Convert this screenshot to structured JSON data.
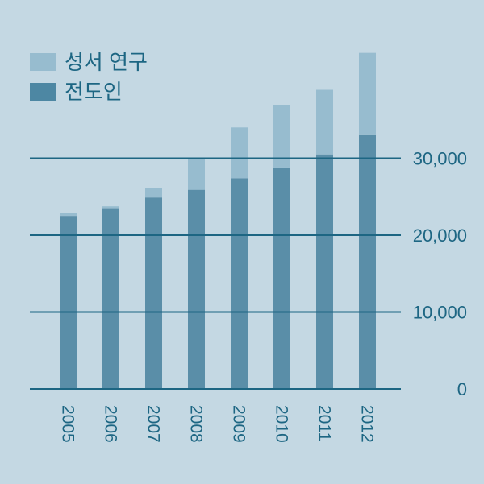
{
  "chart_data": {
    "type": "bar",
    "stacked": true,
    "categories": [
      "2005",
      "2006",
      "2007",
      "2008",
      "2009",
      "2010",
      "2011",
      "2012"
    ],
    "series": [
      {
        "name": "전도인",
        "color": "#5a8ea8",
        "values": [
          22500,
          23500,
          24900,
          25900,
          27400,
          28800,
          30500,
          33000
        ]
      },
      {
        "name": "성서 연구",
        "color": "#97bccf",
        "values": [
          350,
          250,
          1200,
          4100,
          6600,
          8100,
          8400,
          10700
        ]
      }
    ],
    "y_ticks": [
      0,
      10000,
      20000,
      30000
    ],
    "y_tick_labels": [
      "0",
      "10,000",
      "20,000",
      "30,000"
    ],
    "ylim": [
      0,
      46000
    ],
    "y_axis_side": "right",
    "grid": true,
    "legend": "top-left",
    "title": "",
    "xlabel": "",
    "ylabel": "",
    "colors": {
      "background": "#c4d8e3",
      "text": "#1d6683",
      "gridline": "#1d6683"
    }
  }
}
